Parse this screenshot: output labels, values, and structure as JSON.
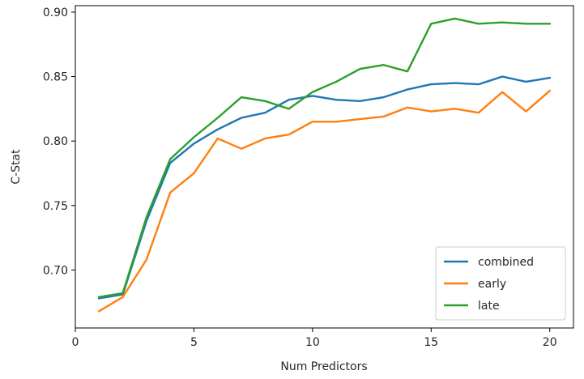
{
  "chart_data": {
    "type": "line",
    "xlabel": "Num Predictors",
    "ylabel": "C-Stat",
    "xlim": [
      0,
      21
    ],
    "ylim": [
      0.655,
      0.905
    ],
    "x_ticks": [
      0,
      5,
      10,
      15,
      20
    ],
    "y_ticks": [
      0.7,
      0.75,
      0.8,
      0.85,
      0.9
    ],
    "x_tick_labels": [
      "0",
      "5",
      "10",
      "15",
      "20"
    ],
    "y_tick_labels": [
      "0.70",
      "0.75",
      "0.80",
      "0.85",
      "0.90"
    ],
    "grid": false,
    "legend_position": "bottom-right",
    "x": [
      1,
      2,
      3,
      4,
      5,
      6,
      7,
      8,
      9,
      10,
      11,
      12,
      13,
      14,
      15,
      16,
      17,
      18,
      19,
      20
    ],
    "series": [
      {
        "name": "combined",
        "color": "#1f77b4",
        "values": [
          0.678,
          0.681,
          0.738,
          0.783,
          0.798,
          0.809,
          0.818,
          0.822,
          0.832,
          0.835,
          0.832,
          0.831,
          0.834,
          0.84,
          0.844,
          0.845,
          0.844,
          0.85,
          0.846,
          0.849
        ]
      },
      {
        "name": "early",
        "color": "#ff7f0e",
        "values": [
          0.668,
          0.679,
          0.708,
          0.76,
          0.775,
          0.802,
          0.794,
          0.802,
          0.805,
          0.815,
          0.815,
          0.817,
          0.819,
          0.826,
          0.823,
          0.825,
          0.822,
          0.838,
          0.823,
          0.839
        ]
      },
      {
        "name": "late",
        "color": "#2ca02c",
        "values": [
          0.679,
          0.682,
          0.741,
          0.786,
          0.803,
          0.818,
          0.834,
          0.831,
          0.825,
          0.838,
          0.846,
          0.856,
          0.859,
          0.854,
          0.891,
          0.895,
          0.891,
          0.892,
          0.891,
          0.891
        ]
      }
    ]
  }
}
